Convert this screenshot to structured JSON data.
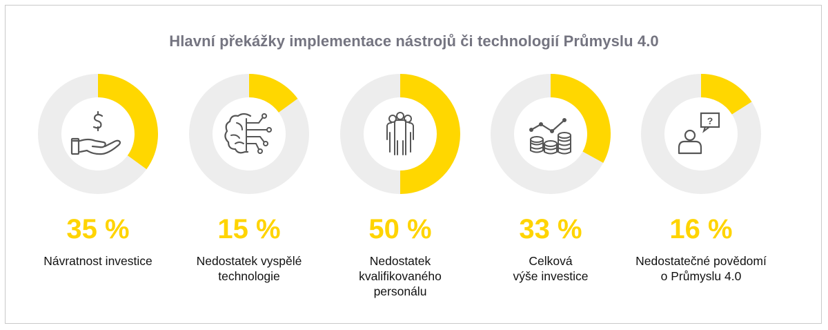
{
  "title": "Hlavní překážky implementace nástrojů či technologií Průmyslu 4.0",
  "colors": {
    "fill": "#FFD700",
    "track": "#EDEDED",
    "icon": "#555555",
    "title": "#747480"
  },
  "chart_data": {
    "type": "pie",
    "title": "Hlavní překážky implementace nástrojů či technologií Průmyslu 4.0",
    "unit": "%",
    "items": [
      {
        "value": 35,
        "pct_text": "35 %",
        "label_lines": [
          "Návratnost investice"
        ],
        "icon": "hand-dollar-icon"
      },
      {
        "value": 15,
        "pct_text": "15 %",
        "label_lines": [
          "Nedostatek vyspělé",
          "technologie"
        ],
        "icon": "brain-circuit-icon"
      },
      {
        "value": 50,
        "pct_text": "50 %",
        "label_lines": [
          "Nedostatek",
          "kvalifikovaného",
          "personálu"
        ],
        "icon": "people-group-icon"
      },
      {
        "value": 33,
        "pct_text": "33 %",
        "label_lines": [
          "Celková",
          "výše investice"
        ],
        "icon": "coins-chart-icon"
      },
      {
        "value": 16,
        "pct_text": "16 %",
        "label_lines": [
          "Nedostatečné povědomí",
          "o Průmyslu 4.0"
        ],
        "icon": "person-question-icon"
      }
    ]
  }
}
